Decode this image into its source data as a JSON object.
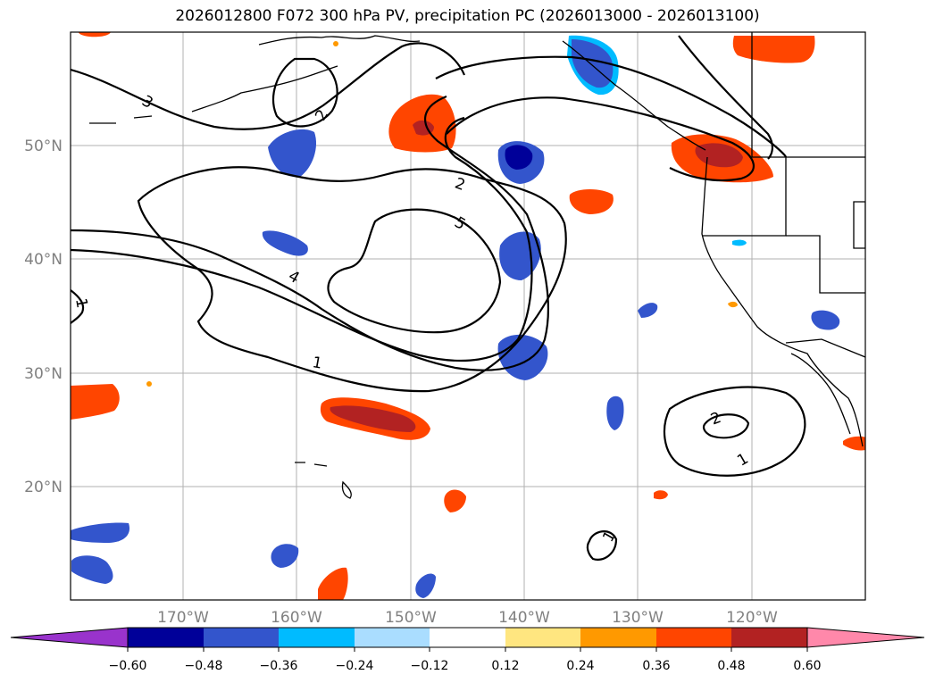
{
  "title": "2026012800 F072 300 hPa PV, precipitation PC (2026013000 - 2026013100)",
  "lat_labels": [
    "50°N",
    "40°N",
    "30°N",
    "20°N"
  ],
  "lon_labels": [
    "170°W",
    "160°W",
    "150°W",
    "140°W",
    "130°W",
    "120°W"
  ],
  "contour_labels": [
    "3",
    "2",
    "2",
    "5",
    "4",
    "1",
    "1",
    "2",
    "1",
    "1"
  ],
  "colorbar": {
    "ticks": [
      "−0.60",
      "−0.48",
      "−0.36",
      "−0.24",
      "−0.12",
      "0.12",
      "0.24",
      "0.36",
      "0.48",
      "0.60"
    ],
    "colors": [
      "#9933cc",
      "#000099",
      "#3355cc",
      "#00bbff",
      "#aaddff",
      "#ffffff",
      "#ffe680",
      "#ff9900",
      "#ff4500",
      "#b22222",
      "#ff88aa"
    ]
  },
  "colors": {
    "negative_strong": "#000099",
    "negative": "#3355cc",
    "negative_light": "#00bbff",
    "positive": "#ff4500",
    "positive_strong": "#b22222",
    "positive_light": "#ff9900"
  }
}
